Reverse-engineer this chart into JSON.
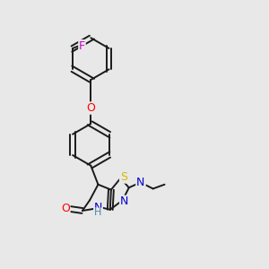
{
  "background_color": "#e8e8e8",
  "bond_color": "#1a1a1a",
  "atom_colors": {
    "F": "#cc00cc",
    "O": "#ff0000",
    "S": "#ccbb00",
    "N": "#0000cc",
    "C": "#1a1a1a",
    "H": "#4488aa"
  },
  "figsize": [
    3.0,
    3.0
  ],
  "dpi": 100
}
